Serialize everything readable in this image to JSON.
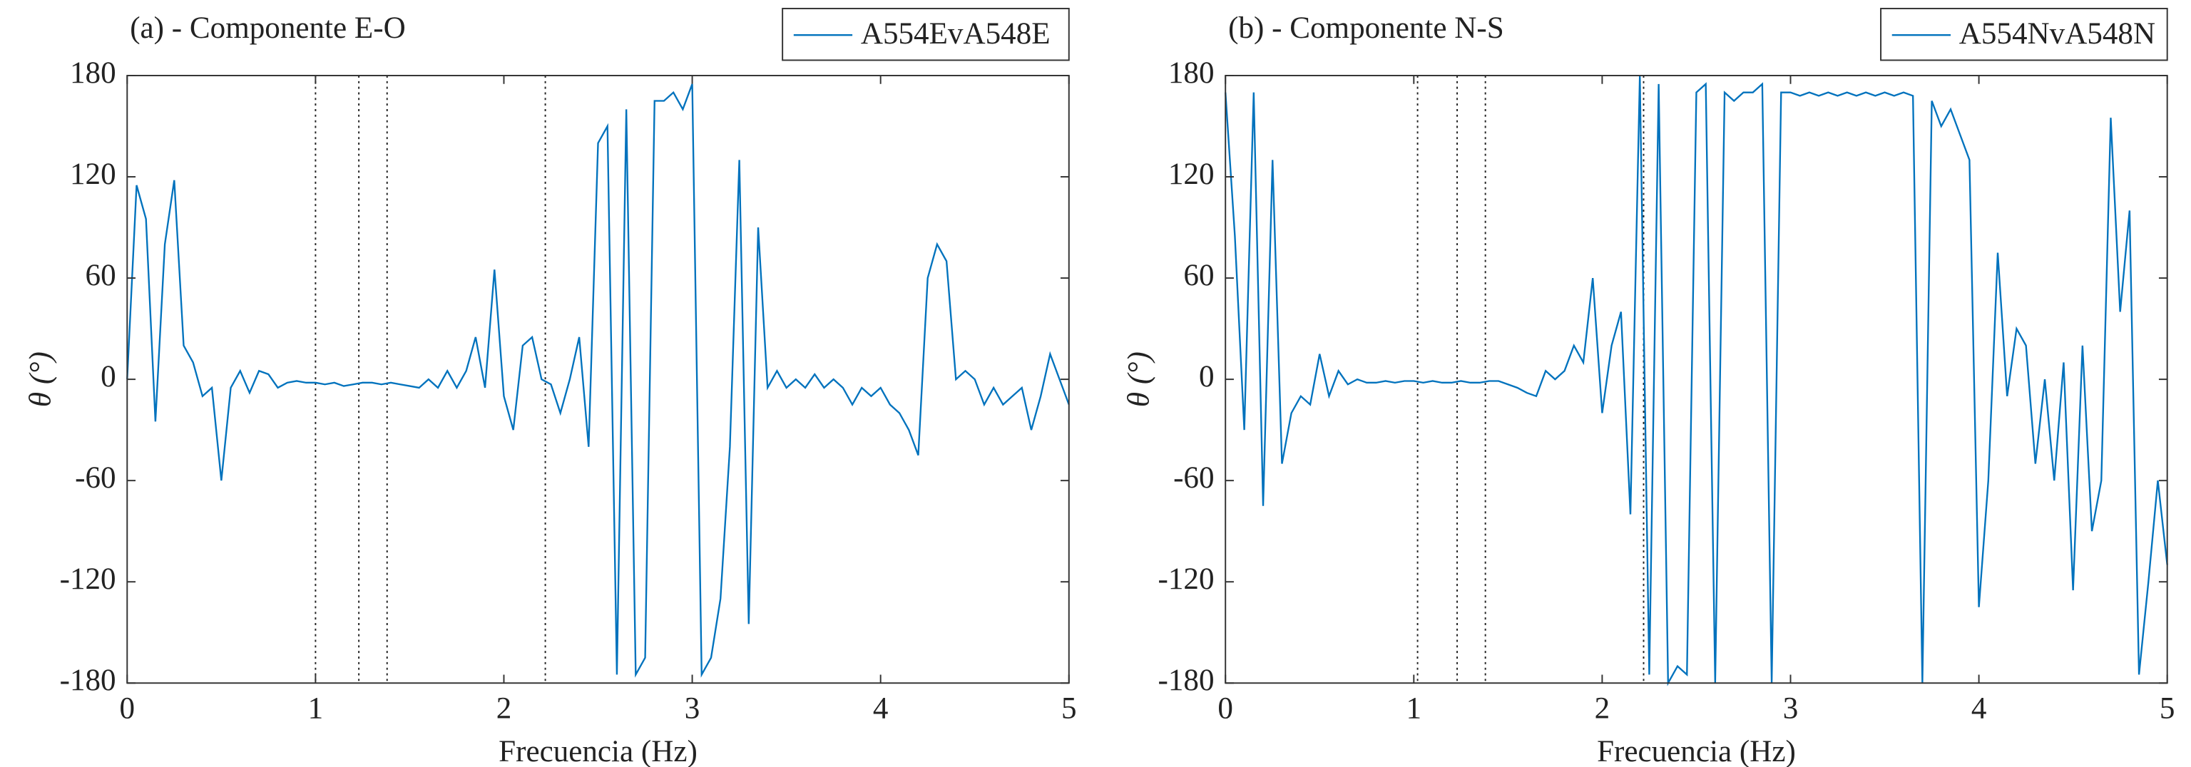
{
  "chart_data": [
    {
      "type": "line",
      "title": "(a) - Componente E-O",
      "xlabel": "Frecuencia (Hz)",
      "ylabel": "θ (°)",
      "xlim": [
        0,
        5
      ],
      "ylim": [
        -180,
        180
      ],
      "xticks": [
        0,
        1,
        2,
        3,
        4,
        5
      ],
      "yticks": [
        180,
        120,
        60,
        0,
        -60,
        -120,
        -180
      ],
      "vlines": [
        1.0,
        1.23,
        1.38,
        2.22
      ],
      "legend": "upper right",
      "x": [
        0,
        0.05,
        0.1,
        0.15,
        0.2,
        0.25,
        0.3,
        0.35,
        0.4,
        0.45,
        0.5,
        0.55,
        0.6,
        0.65,
        0.7,
        0.75,
        0.8,
        0.85,
        0.9,
        0.95,
        1,
        1.05,
        1.1,
        1.15,
        1.2,
        1.25,
        1.3,
        1.35,
        1.4,
        1.45,
        1.5,
        1.55,
        1.6,
        1.65,
        1.7,
        1.75,
        1.8,
        1.85,
        1.9,
        1.95,
        2,
        2.05,
        2.1,
        2.15,
        2.2,
        2.25,
        2.3,
        2.35,
        2.4,
        2.45,
        2.5,
        2.55,
        2.6,
        2.65,
        2.7,
        2.75,
        2.8,
        2.85,
        2.9,
        2.95,
        3,
        3.05,
        3.1,
        3.15,
        3.2,
        3.25,
        3.3,
        3.35,
        3.4,
        3.45,
        3.5,
        3.55,
        3.6,
        3.65,
        3.7,
        3.75,
        3.8,
        3.85,
        3.9,
        3.95,
        4,
        4.05,
        4.1,
        4.15,
        4.2,
        4.25,
        4.3,
        4.35,
        4.4,
        4.45,
        4.5,
        4.55,
        4.6,
        4.65,
        4.7,
        4.75,
        4.8,
        4.85,
        4.9,
        4.95,
        5
      ],
      "series": [
        {
          "name": "A554EvA548E",
          "color": "#0072bd",
          "values": [
            0,
            115,
            95,
            -25,
            80,
            118,
            20,
            10,
            -10,
            -5,
            -60,
            -5,
            5,
            -8,
            5,
            3,
            -5,
            -2,
            -1,
            -2,
            -2,
            -3,
            -2,
            -4,
            -3,
            -2,
            -2,
            -3,
            -2,
            -3,
            -4,
            -5,
            0,
            -5,
            5,
            -5,
            5,
            25,
            -5,
            65,
            -10,
            -30,
            20,
            25,
            0,
            -3,
            -20,
            0,
            25,
            -40,
            140,
            150,
            -175,
            160,
            -175,
            -165,
            165,
            165,
            170,
            160,
            175,
            -175,
            -165,
            -130,
            -40,
            130,
            -145,
            90,
            -5,
            5,
            -5,
            0,
            -5,
            3,
            -5,
            0,
            -5,
            -15,
            -5,
            -10,
            -5,
            -15,
            -20,
            -30,
            -45,
            60,
            80,
            70,
            0,
            5,
            0,
            -15,
            -5,
            -15,
            -10,
            -5,
            -30,
            -10,
            15,
            0,
            -15
          ]
        }
      ]
    },
    {
      "type": "line",
      "title": "(b) - Componente N-S",
      "xlabel": "Frecuencia (Hz)",
      "ylabel": "θ (°)",
      "xlim": [
        0,
        5
      ],
      "ylim": [
        -180,
        180
      ],
      "xticks": [
        0,
        1,
        2,
        3,
        4,
        5
      ],
      "yticks": [
        180,
        120,
        60,
        0,
        -60,
        -120,
        -180
      ],
      "vlines": [
        1.02,
        1.23,
        1.38,
        2.22
      ],
      "legend": "upper right",
      "x": [
        0,
        0.05,
        0.1,
        0.15,
        0.2,
        0.25,
        0.3,
        0.35,
        0.4,
        0.45,
        0.5,
        0.55,
        0.6,
        0.65,
        0.7,
        0.75,
        0.8,
        0.85,
        0.9,
        0.95,
        1,
        1.05,
        1.1,
        1.15,
        1.2,
        1.25,
        1.3,
        1.35,
        1.4,
        1.45,
        1.5,
        1.55,
        1.6,
        1.65,
        1.7,
        1.75,
        1.8,
        1.85,
        1.9,
        1.95,
        2,
        2.05,
        2.1,
        2.15,
        2.2,
        2.25,
        2.3,
        2.35,
        2.4,
        2.45,
        2.5,
        2.55,
        2.6,
        2.65,
        2.7,
        2.75,
        2.8,
        2.85,
        2.9,
        2.95,
        3,
        3.05,
        3.1,
        3.15,
        3.2,
        3.25,
        3.3,
        3.35,
        3.4,
        3.45,
        3.5,
        3.55,
        3.6,
        3.65,
        3.7,
        3.75,
        3.8,
        3.85,
        3.9,
        3.95,
        4,
        4.05,
        4.1,
        4.15,
        4.2,
        4.25,
        4.3,
        4.35,
        4.4,
        4.45,
        4.5,
        4.55,
        4.6,
        4.65,
        4.7,
        4.75,
        4.8,
        4.85,
        4.9,
        4.95,
        5
      ],
      "series": [
        {
          "name": "A554NvA548N",
          "color": "#0072bd",
          "values": [
            170,
            85,
            -30,
            170,
            -75,
            130,
            -50,
            -20,
            -10,
            -15,
            15,
            -10,
            5,
            -3,
            0,
            -2,
            -2,
            -1,
            -2,
            -1,
            -1,
            -2,
            -1,
            -2,
            -2,
            -1,
            -2,
            -2,
            -1,
            -1,
            -3,
            -5,
            -8,
            -10,
            5,
            0,
            5,
            20,
            10,
            60,
            -20,
            20,
            40,
            -80,
            180,
            -175,
            175,
            -180,
            -170,
            -175,
            170,
            175,
            -180,
            170,
            165,
            170,
            170,
            175,
            -180,
            170,
            170,
            168,
            170,
            168,
            170,
            168,
            170,
            168,
            170,
            168,
            170,
            168,
            170,
            168,
            -180,
            165,
            150,
            160,
            145,
            130,
            -135,
            -60,
            75,
            -10,
            30,
            20,
            -50,
            0,
            -60,
            10,
            -125,
            20,
            -90,
            -60,
            155,
            40,
            100,
            -175,
            -120,
            -60,
            -110
          ]
        }
      ]
    }
  ]
}
